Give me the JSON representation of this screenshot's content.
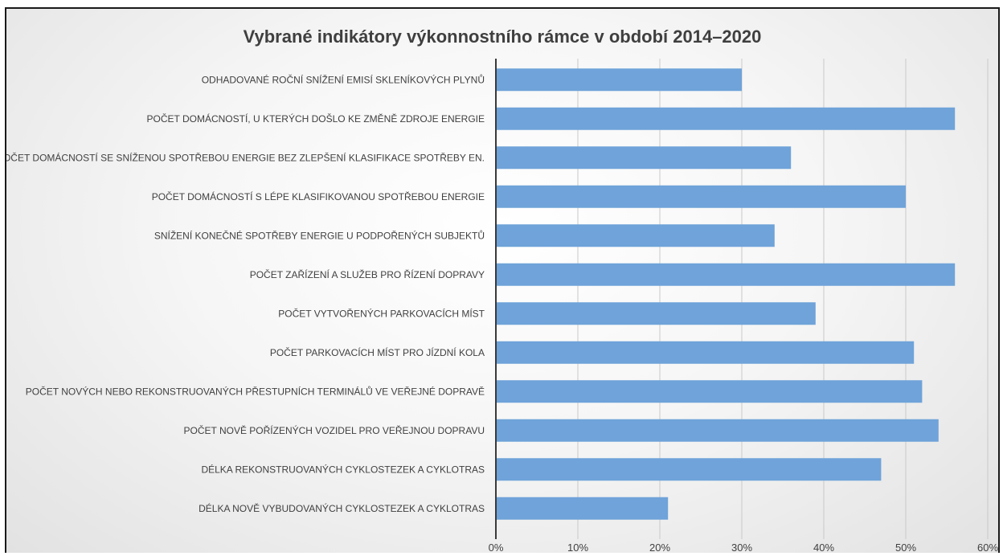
{
  "chart_data": {
    "type": "bar",
    "orientation": "horizontal",
    "title": "Vybrané indikátory výkonnostního rámce v období 2014–2020",
    "xlabel": "",
    "ylabel": "",
    "categories": [
      "ODHADOVANÉ ROČNÍ SNÍŽENÍ EMISÍ SKLENÍKOVÝCH PLYNŮ",
      "POČET DOMÁCNOSTÍ, U KTERÝCH DOŠLO KE ZMĚNĚ ZDROJE ENERGIE",
      "POČET DOMÁCNOSTÍ SE SNÍŽENOU SPOTŘEBOU ENERGIE BEZ ZLEPŠENÍ KLASIFIKACE SPOTŘEBY EN.",
      "POČET DOMÁCNOSTÍ S LÉPE KLASIFIKOVANOU SPOTŘEBOU ENERGIE",
      "SNÍŽENÍ KONEČNÉ SPOTŘEBY ENERGIE U PODPOŘENÝCH SUBJEKTŮ",
      "POČET ZAŘÍZENÍ A SLUŽEB PRO ŘÍZENÍ DOPRAVY",
      "POČET VYTVOŘENÝCH PARKOVACÍCH MÍST",
      "POČET PARKOVACÍCH MÍST PRO JÍZDNÍ KOLA",
      "POČET NOVÝCH NEBO REKONSTRUOVANÝCH PŘESTUPNÍCH TERMINÁLŮ VE VEŘEJNÉ DOPRAVĚ",
      "POČET NOVĚ POŘÍZENÝCH VOZIDEL PRO VEŘEJNOU DOPRAVU",
      "DÉLKA REKONSTRUOVANÝCH CYKLOSTEZEK A CYKLOTRAS",
      "DÉLKA NOVĚ VYBUDOVANÝCH CYKLOSTEZEK A CYKLOTRAS"
    ],
    "values": [
      30,
      56,
      36,
      50,
      34,
      56,
      39,
      51,
      52,
      54,
      47,
      21
    ],
    "xlim": [
      0,
      60
    ],
    "xticks": [
      "0%",
      "10%",
      "20%",
      "30%",
      "40%",
      "50%",
      "60%"
    ],
    "grid": true,
    "legend": "none",
    "bar_color": "#6fa3d9",
    "grid_color": "#c9c9c9",
    "axis_color": "#3a3a3a"
  }
}
